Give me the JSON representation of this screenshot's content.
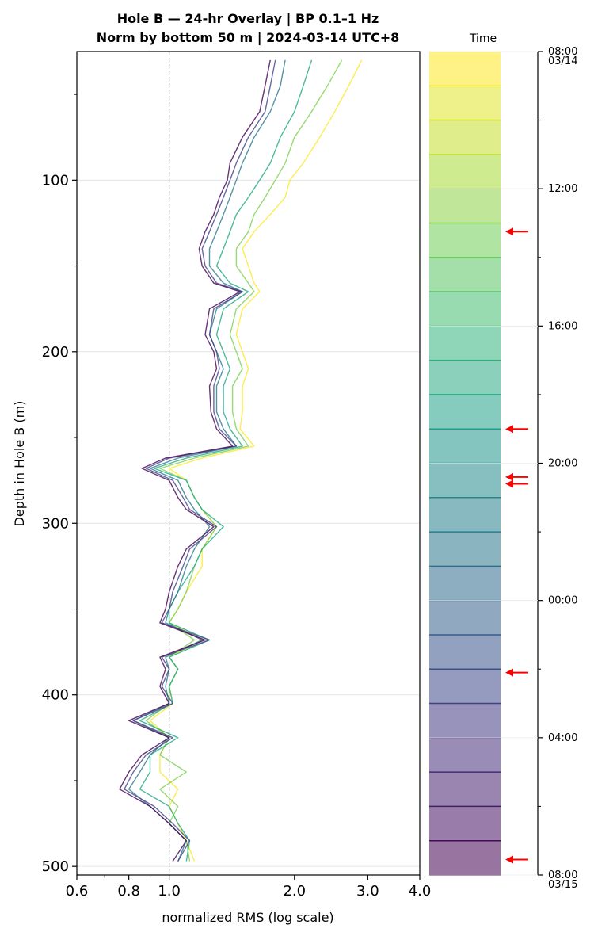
{
  "chart_data": {
    "type": "line",
    "title": "Hole B — 24-hr Overlay  |  BP 0.1–1 Hz",
    "subtitle": "Norm by bottom 50 m  |  2024-03-14 UTC+8",
    "xlabel": "normalized RMS  (log scale)",
    "ylabel": "Depth in Hole B (m)",
    "x_scale": "log",
    "xlim": [
      0.6,
      4.0
    ],
    "ylim": [
      505,
      25
    ],
    "x_ticks": [
      {
        "value": 0.6,
        "label": "0.6"
      },
      {
        "value": 0.8,
        "label": "0.8"
      },
      {
        "value": 1.0,
        "label": "1.0"
      },
      {
        "value": 2.0,
        "label": "2.0"
      },
      {
        "value": 3.0,
        "label": "3.0"
      },
      {
        "value": 4.0,
        "label": "4.0"
      }
    ],
    "y_ticks": [
      {
        "value": 100,
        "label": "100"
      },
      {
        "value": 200,
        "label": "200"
      },
      {
        "value": 300,
        "label": "300"
      },
      {
        "value": 400,
        "label": "400"
      },
      {
        "value": 500,
        "label": "500"
      }
    ],
    "reference_line": {
      "x": 1.0,
      "style": "dashed",
      "color": "#888888"
    },
    "grid": "horizontal",
    "depth_profile_m": [
      30,
      45,
      60,
      75,
      90,
      100,
      110,
      120,
      130,
      140,
      150,
      160,
      165,
      175,
      190,
      200,
      210,
      220,
      235,
      245,
      255,
      262,
      268,
      275,
      285,
      292,
      302,
      315,
      325,
      340,
      350,
      358,
      368,
      378,
      385,
      395,
      405,
      415,
      425,
      435,
      445,
      455,
      465,
      475,
      485,
      497
    ],
    "series": [
      {
        "time": "08:00",
        "values": [
          2.9,
          2.7,
          2.5,
          2.3,
          2.1,
          1.95,
          1.9,
          1.75,
          1.6,
          1.5,
          1.55,
          1.6,
          1.65,
          1.5,
          1.45,
          1.5,
          1.55,
          1.5,
          1.5,
          1.48,
          1.6,
          1.2,
          1.0,
          1.1,
          1.15,
          1.2,
          1.3,
          1.2,
          1.2,
          1.1,
          1.05,
          1.0,
          1.2,
          1.0,
          1.05,
          1.0,
          1.02,
          0.9,
          1.0,
          0.95,
          0.95,
          1.05,
          1.0,
          1.05,
          1.1,
          1.15
        ],
        "color": "#fde725"
      },
      {
        "time": "12:00",
        "values": [
          2.6,
          2.4,
          2.2,
          2.0,
          1.9,
          1.8,
          1.7,
          1.6,
          1.55,
          1.45,
          1.45,
          1.55,
          1.6,
          1.45,
          1.4,
          1.45,
          1.5,
          1.42,
          1.42,
          1.45,
          1.55,
          1.15,
          0.95,
          1.1,
          1.15,
          1.2,
          1.3,
          1.2,
          1.15,
          1.1,
          1.05,
          1.0,
          1.15,
          1.0,
          1.05,
          1.0,
          1.0,
          0.88,
          1.0,
          0.95,
          1.1,
          0.95,
          1.05,
          1.0,
          1.1,
          1.12
        ],
        "color": "#7ad151"
      },
      {
        "time": "16:00",
        "values": [
          2.2,
          2.1,
          2.0,
          1.85,
          1.75,
          1.65,
          1.55,
          1.45,
          1.4,
          1.35,
          1.3,
          1.4,
          1.55,
          1.35,
          1.3,
          1.35,
          1.4,
          1.35,
          1.35,
          1.4,
          1.5,
          1.1,
          0.92,
          1.1,
          1.15,
          1.2,
          1.35,
          1.2,
          1.15,
          1.05,
          1.0,
          1.0,
          1.25,
          1.0,
          1.05,
          1.0,
          1.02,
          0.85,
          1.05,
          0.9,
          0.9,
          0.85,
          1.0,
          1.05,
          1.12,
          1.1
        ],
        "color": "#22a884"
      },
      {
        "time": "20:00",
        "values": [
          1.9,
          1.85,
          1.75,
          1.6,
          1.5,
          1.45,
          1.4,
          1.35,
          1.3,
          1.25,
          1.25,
          1.35,
          1.5,
          1.3,
          1.25,
          1.3,
          1.35,
          1.3,
          1.3,
          1.35,
          1.45,
          1.05,
          0.9,
          1.05,
          1.1,
          1.15,
          1.25,
          1.15,
          1.1,
          1.05,
          1.0,
          0.98,
          1.2,
          0.98,
          1.0,
          0.98,
          1.0,
          0.82,
          1.0,
          0.9,
          0.85,
          0.8,
          0.9,
          1.0,
          1.1,
          1.05
        ],
        "color": "#2a788e"
      },
      {
        "time": "00:00",
        "values": [
          1.8,
          1.75,
          1.7,
          1.55,
          1.45,
          1.4,
          1.35,
          1.3,
          1.25,
          1.2,
          1.22,
          1.3,
          1.5,
          1.28,
          1.25,
          1.3,
          1.32,
          1.28,
          1.28,
          1.32,
          1.45,
          1.0,
          0.88,
          1.02,
          1.08,
          1.12,
          1.3,
          1.12,
          1.08,
          1.02,
          1.0,
          0.96,
          1.25,
          0.96,
          1.0,
          0.96,
          1.02,
          0.82,
          1.02,
          0.88,
          0.82,
          0.78,
          0.92,
          1.02,
          1.12,
          1.05
        ],
        "color": "#414487"
      },
      {
        "time": "04:00",
        "values": [
          1.75,
          1.7,
          1.65,
          1.5,
          1.4,
          1.38,
          1.32,
          1.28,
          1.22,
          1.18,
          1.2,
          1.28,
          1.48,
          1.25,
          1.22,
          1.28,
          1.3,
          1.25,
          1.26,
          1.3,
          1.42,
          0.98,
          0.86,
          1.0,
          1.05,
          1.1,
          1.28,
          1.1,
          1.05,
          1.0,
          0.98,
          0.95,
          1.22,
          0.95,
          0.98,
          0.95,
          1.0,
          0.8,
          1.0,
          0.86,
          0.8,
          0.76,
          0.9,
          1.0,
          1.1,
          1.02
        ],
        "color": "#440154"
      }
    ],
    "colorbar": {
      "title": "Time",
      "colormap": "viridis",
      "ticks": [
        {
          "label": "08:00",
          "sublabel": "03/14"
        },
        {
          "label": "12:00",
          "sublabel": ""
        },
        {
          "label": "16:00",
          "sublabel": ""
        },
        {
          "label": "20:00",
          "sublabel": ""
        },
        {
          "label": "00:00",
          "sublabel": ""
        },
        {
          "label": "04:00",
          "sublabel": ""
        },
        {
          "label": "08:00",
          "sublabel": "03/15"
        }
      ],
      "arrow_hours_from_start": [
        5.25,
        11.0,
        12.4,
        12.6,
        18.1,
        23.55
      ],
      "arrow_color": "#ff0000"
    }
  }
}
